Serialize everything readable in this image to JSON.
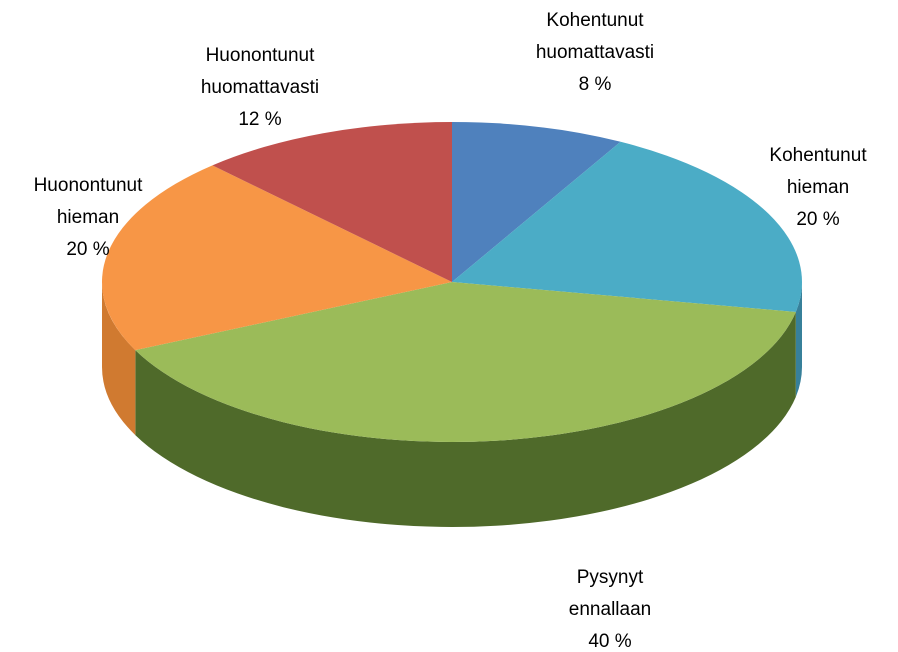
{
  "chart_data": {
    "type": "pie",
    "categories": [
      "Kohentunut huomattavasti",
      "Kohentunut hieman",
      "Pysynyt ennallaan",
      "Huonontunut hieman",
      "Huonontunut huomattavasti"
    ],
    "values": [
      8,
      20,
      40,
      20,
      12
    ],
    "value_labels": [
      "8 %",
      "20 %",
      "40 %",
      "20 %",
      "12 %"
    ],
    "colors": [
      "#4f81bd",
      "#4bacc6",
      "#9bbb59",
      "#f79646",
      "#c0504d"
    ],
    "side_colors": [
      "#3a5f8c",
      "#37809a",
      "#4f6a2a",
      "#d07a30",
      "#8e3a38"
    ]
  }
}
